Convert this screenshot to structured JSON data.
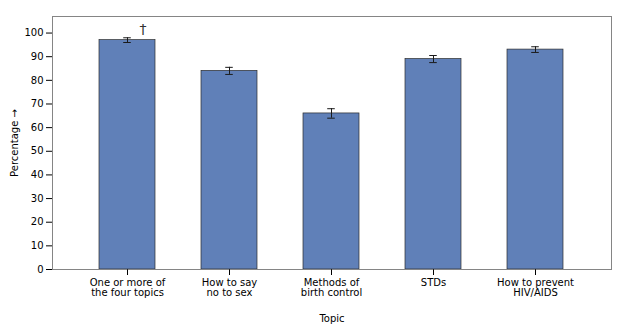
{
  "chart_data": {
    "type": "bar",
    "categories": [
      "One or more of\nthe four topics",
      "How to say\nno to sex",
      "Methods of\nbirth control",
      "STDs",
      "How to prevent\nHIV/AIDS"
    ],
    "values": [
      97,
      84,
      66,
      89,
      93
    ],
    "errors": [
      1.0,
      1.5,
      2.0,
      1.5,
      1.2
    ],
    "color": "#6080b8",
    "xlabel": "Topic",
    "ylabel": "Percentage",
    "ylim": [
      0,
      107
    ],
    "yticks": [
      0,
      10,
      20,
      30,
      40,
      50,
      60,
      70,
      80,
      90,
      100
    ],
    "grid": false,
    "annotations": [
      {
        "text": "†",
        "category": "One or more of\nthe four topics"
      }
    ]
  }
}
